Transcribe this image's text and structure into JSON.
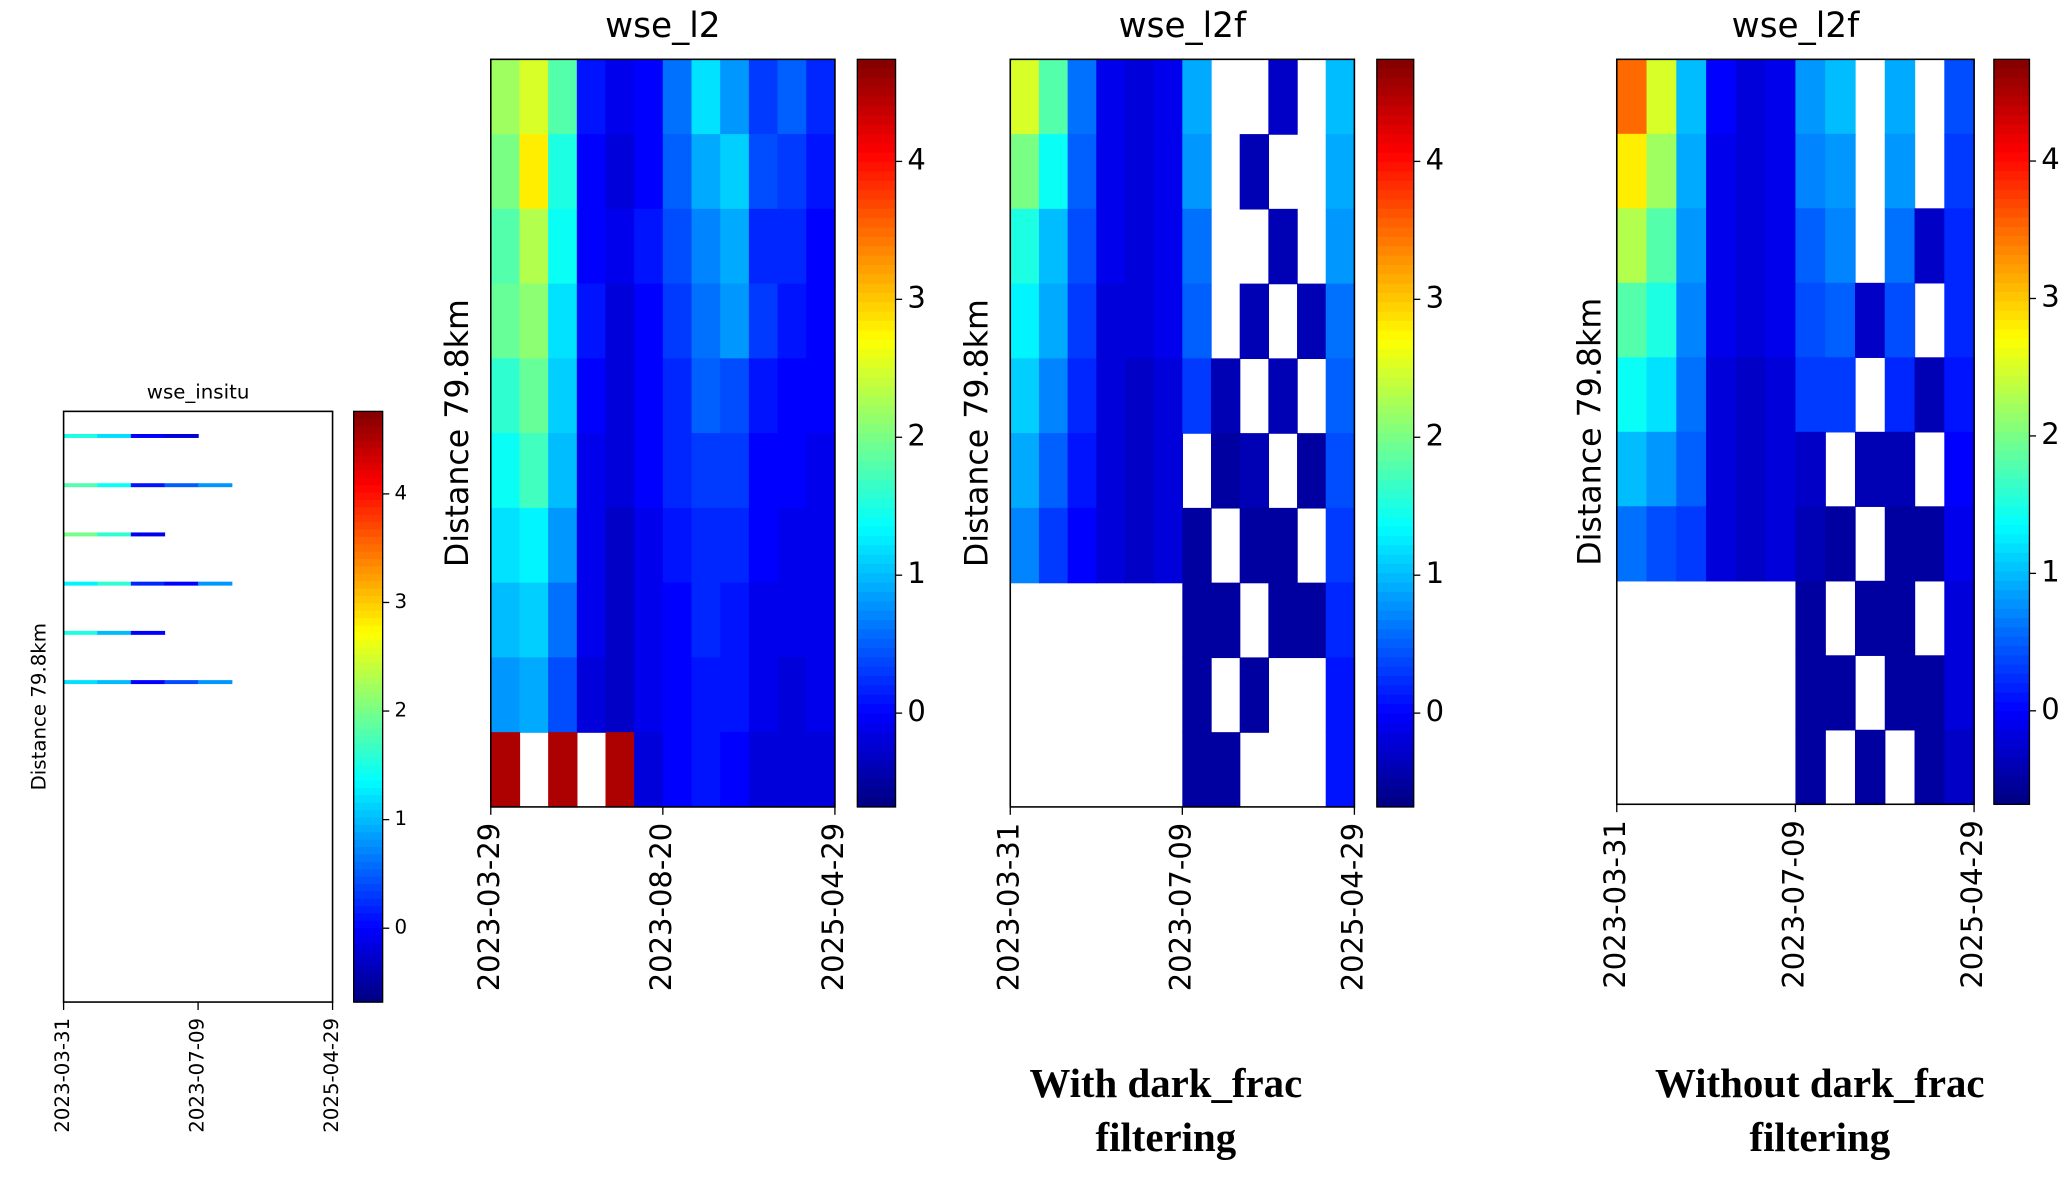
{
  "chart_data": [
    {
      "type": "heatmap",
      "title": "wse_insitu",
      "ylabel": "Distance 79.8km",
      "colormap": "jet",
      "xlim": [
        0,
        1
      ],
      "xticks": [
        {
          "value": 0,
          "label": "2023-03-31"
        },
        {
          "value": 0.5,
          "label": "2023-07-09"
        },
        {
          "value": 1,
          "label": "2025-04-29"
        }
      ],
      "zlim": [
        -0.68,
        4.76
      ],
      "zticks": [
        0,
        1,
        2,
        3,
        4
      ],
      "z": [
        [
          1.5,
          1.2,
          0.0,
          -0.2,
          null,
          null,
          null,
          null
        ],
        [
          1.8,
          1.4,
          0.1,
          0.5,
          0.8,
          null,
          null,
          null
        ],
        [
          2.0,
          1.6,
          -0.1,
          null,
          null,
          null,
          null,
          null
        ],
        [
          1.3,
          1.6,
          0.2,
          0.0,
          0.8,
          null,
          null,
          null
        ],
        [
          1.5,
          1.0,
          0.0,
          null,
          null,
          null,
          null,
          null
        ],
        [
          1.2,
          1.0,
          0.0,
          0.4,
          0.8,
          null,
          null,
          null
        ],
        [
          null,
          null,
          null,
          null,
          null,
          null,
          null,
          null
        ],
        [
          null,
          null,
          null,
          null,
          null,
          null,
          null,
          null
        ],
        [
          null,
          null,
          null,
          null,
          null,
          null,
          null,
          null
        ],
        [
          null,
          null,
          null,
          null,
          null,
          null,
          null,
          null
        ],
        [
          null,
          null,
          null,
          null,
          null,
          null,
          null,
          null
        ],
        [
          null,
          null,
          null,
          null,
          null,
          null,
          null,
          null
        ]
      ]
    },
    {
      "type": "heatmap",
      "title": "wse_l2",
      "ylabel": "Distance 79.8km",
      "colormap": "jet",
      "xlim": [
        0,
        1
      ],
      "xticks": [
        {
          "value": 0,
          "label": "2023-03-29"
        },
        {
          "value": 0.5,
          "label": "2023-08-20"
        },
        {
          "value": 1,
          "label": "2025-04-29"
        }
      ],
      "zlim": [
        -0.68,
        4.74
      ],
      "zticks": [
        0,
        1,
        2,
        3,
        4
      ],
      "z": [
        [
          2.2,
          2.5,
          1.8,
          0.1,
          -0.1,
          0.0,
          0.6,
          1.2,
          0.8,
          0.3,
          0.5,
          0.2
        ],
        [
          2.0,
          2.8,
          1.5,
          0.0,
          -0.2,
          0.0,
          0.5,
          0.9,
          1.1,
          0.4,
          0.3,
          0.1
        ],
        [
          1.8,
          2.3,
          1.4,
          0.0,
          -0.1,
          0.1,
          0.4,
          0.7,
          0.9,
          0.2,
          0.2,
          0.0
        ],
        [
          1.9,
          2.1,
          1.2,
          0.1,
          -0.2,
          0.0,
          0.3,
          0.6,
          0.8,
          0.3,
          0.1,
          0.0
        ],
        [
          1.6,
          1.9,
          1.1,
          0.0,
          -0.2,
          0.0,
          0.2,
          0.5,
          0.4,
          0.1,
          0.0,
          0.0
        ],
        [
          1.4,
          1.7,
          1.0,
          -0.1,
          -0.2,
          0.0,
          0.2,
          0.3,
          0.3,
          0.0,
          0.0,
          -0.1
        ],
        [
          1.2,
          1.3,
          0.8,
          -0.1,
          -0.3,
          -0.1,
          0.1,
          0.2,
          0.2,
          0.0,
          -0.1,
          -0.1
        ],
        [
          1.0,
          1.1,
          0.6,
          -0.1,
          -0.3,
          -0.1,
          0.0,
          0.2,
          0.1,
          -0.1,
          -0.1,
          -0.1
        ],
        [
          0.8,
          0.9,
          0.4,
          -0.2,
          -0.3,
          -0.1,
          0.0,
          0.1,
          0.1,
          -0.1,
          -0.2,
          -0.1
        ],
        [
          4.5,
          null,
          4.5,
          null,
          4.5,
          -0.2,
          0.0,
          0.1,
          0.0,
          -0.2,
          -0.2,
          -0.2
        ]
      ]
    },
    {
      "type": "heatmap",
      "title": "wse_l2f",
      "ylabel": "Distance 79.8km",
      "colormap": "jet",
      "xlim": [
        0,
        1
      ],
      "xticks": [
        {
          "value": 0,
          "label": "2023-03-31"
        },
        {
          "value": 0.5,
          "label": "2023-07-09"
        },
        {
          "value": 1,
          "label": "2025-04-29"
        }
      ],
      "zlim": [
        -0.68,
        4.74
      ],
      "zticks": [
        0,
        1,
        2,
        3,
        4
      ],
      "caption": [
        "With dark_frac",
        "filtering"
      ],
      "z": [
        [
          2.5,
          1.8,
          0.6,
          -0.1,
          -0.2,
          -0.1,
          0.9,
          null,
          null,
          -0.3,
          null,
          1.0
        ],
        [
          2.0,
          1.4,
          0.5,
          -0.1,
          -0.2,
          -0.1,
          0.8,
          null,
          -0.4,
          null,
          null,
          0.9
        ],
        [
          1.5,
          1.0,
          0.4,
          -0.1,
          -0.2,
          -0.1,
          0.6,
          null,
          null,
          -0.4,
          null,
          0.8
        ],
        [
          1.3,
          0.9,
          0.3,
          -0.2,
          -0.2,
          -0.1,
          0.5,
          null,
          -0.4,
          null,
          -0.4,
          0.6
        ],
        [
          1.1,
          0.7,
          0.2,
          -0.2,
          -0.3,
          -0.2,
          0.3,
          -0.4,
          null,
          -0.4,
          null,
          0.5
        ],
        [
          0.9,
          0.5,
          0.1,
          -0.2,
          -0.3,
          -0.2,
          null,
          -0.5,
          -0.4,
          null,
          -0.5,
          0.4
        ],
        [
          0.7,
          0.3,
          0.0,
          -0.2,
          -0.3,
          -0.2,
          -0.5,
          null,
          -0.5,
          -0.5,
          null,
          0.3
        ],
        [
          null,
          null,
          null,
          null,
          null,
          null,
          -0.5,
          -0.5,
          null,
          -0.5,
          -0.5,
          0.2
        ],
        [
          null,
          null,
          null,
          null,
          null,
          null,
          -0.5,
          null,
          -0.5,
          null,
          null,
          0.1
        ],
        [
          null,
          null,
          null,
          null,
          null,
          null,
          -0.5,
          -0.5,
          null,
          null,
          null,
          0.1
        ]
      ]
    },
    {
      "type": "heatmap",
      "title": "wse_l2f",
      "ylabel": "Distance 79.8km",
      "colormap": "jet",
      "xlim": [
        0,
        1
      ],
      "xticks": [
        {
          "value": 0,
          "label": "2023-03-31"
        },
        {
          "value": 0.5,
          "label": "2023-07-09"
        },
        {
          "value": 1,
          "label": "2025-04-29"
        }
      ],
      "zlim": [
        -0.68,
        4.74
      ],
      "zticks": [
        0,
        1,
        2,
        3,
        4
      ],
      "caption": [
        "Without dark_frac",
        "filtering"
      ],
      "z": [
        [
          3.5,
          2.5,
          1.0,
          0.0,
          -0.2,
          -0.1,
          0.8,
          1.0,
          null,
          0.9,
          null,
          0.4
        ],
        [
          2.8,
          2.2,
          0.9,
          -0.1,
          -0.2,
          -0.1,
          0.7,
          0.8,
          null,
          0.8,
          null,
          0.3
        ],
        [
          2.3,
          1.8,
          0.8,
          -0.1,
          -0.2,
          -0.1,
          0.5,
          0.7,
          null,
          0.6,
          -0.3,
          0.2
        ],
        [
          1.8,
          1.5,
          0.7,
          -0.1,
          -0.2,
          -0.1,
          0.4,
          0.5,
          -0.3,
          0.4,
          null,
          0.2
        ],
        [
          1.4,
          1.2,
          0.6,
          -0.2,
          -0.3,
          -0.2,
          0.3,
          0.3,
          null,
          0.2,
          -0.4,
          0.1
        ],
        [
          1.0,
          0.8,
          0.5,
          -0.2,
          -0.3,
          -0.2,
          -0.3,
          null,
          -0.4,
          -0.4,
          null,
          0.0
        ],
        [
          0.6,
          0.4,
          0.3,
          -0.2,
          -0.3,
          -0.2,
          -0.4,
          -0.5,
          null,
          -0.5,
          -0.5,
          -0.1
        ],
        [
          null,
          null,
          null,
          null,
          null,
          null,
          -0.5,
          null,
          -0.5,
          -0.5,
          null,
          -0.2
        ],
        [
          null,
          null,
          null,
          null,
          null,
          null,
          -0.5,
          -0.5,
          null,
          -0.5,
          -0.5,
          -0.2
        ],
        [
          null,
          null,
          null,
          null,
          null,
          null,
          -0.5,
          null,
          -0.5,
          null,
          -0.5,
          -0.3
        ]
      ]
    }
  ]
}
